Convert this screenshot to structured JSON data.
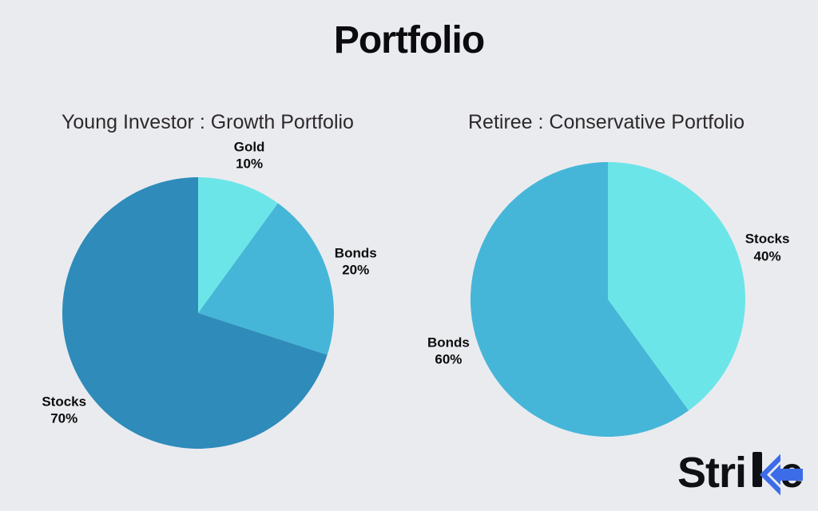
{
  "page": {
    "title": "Portfolio",
    "background_color": "#eaebef"
  },
  "chart_data": [
    {
      "type": "pie",
      "title": "Young Investor : Growth Portfolio",
      "labels": [
        "Gold",
        "Bonds",
        "Stocks"
      ],
      "values": [
        10,
        20,
        70
      ],
      "unit": "%",
      "colors": [
        "#6ce5e8",
        "#45b6d8",
        "#2e8bba"
      ],
      "start_angle": "top",
      "direction": "clockwise",
      "legend": "none",
      "slice_labels": [
        "Gold 10%",
        "Bonds 20%",
        "Stocks 70%"
      ]
    },
    {
      "type": "pie",
      "title": "Retiree : Conservative Portfolio",
      "labels": [
        "Stocks",
        "Bonds"
      ],
      "values": [
        40,
        60
      ],
      "unit": "%",
      "colors": [
        "#6ce5e8",
        "#45b6d8"
      ],
      "start_angle": "top",
      "direction": "clockwise",
      "legend": "none",
      "slice_labels": [
        "Stocks 40%",
        "Bonds 60%"
      ]
    }
  ],
  "logo": {
    "brand": "Strike",
    "prefix": "Stri",
    "stylized_letter": "k",
    "suffix": "e",
    "accent_color": "#3c6ce8",
    "text_color": "#0f1013"
  }
}
